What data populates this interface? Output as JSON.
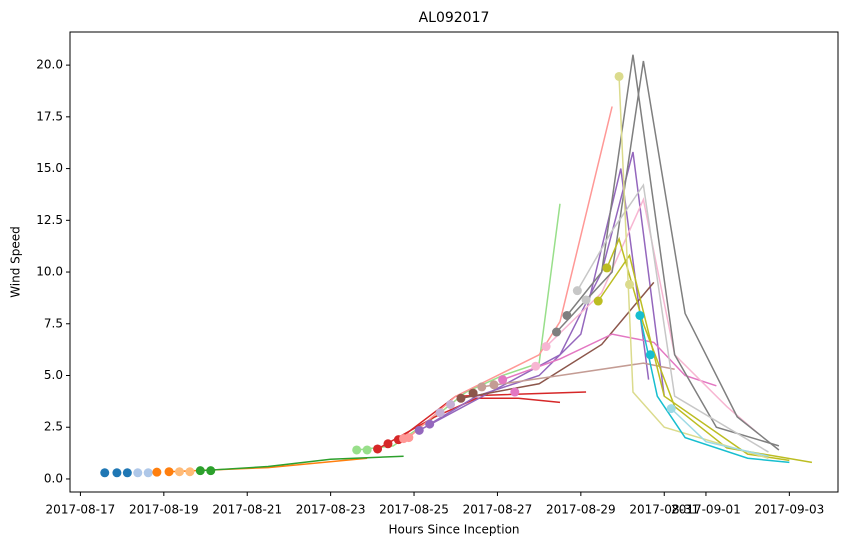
{
  "chart_data": {
    "type": "line",
    "title": "AL092017",
    "x_label": "Hours Since Inception",
    "y_label": "Wind Speed",
    "xlim": [
      "2017-08-16 18:00",
      "2017-09-04 04:00"
    ],
    "ylim": [
      -0.63,
      21.6
    ],
    "xticks": [
      "2017-08-17",
      "2017-08-19",
      "2017-08-21",
      "2017-08-23",
      "2017-08-25",
      "2017-08-27",
      "2017-08-29",
      "2017-08-31",
      "2017-09-01",
      "2017-09-03"
    ],
    "yticks": [
      {
        "value": 0,
        "label": "0.0"
      },
      2.5,
      {
        "value": 5,
        "label": "5.0"
      },
      7.5,
      {
        "value": 10,
        "label": "10.0"
      },
      12.5,
      {
        "value": 15,
        "label": "15.0"
      },
      17.5,
      {
        "value": 20,
        "label": "20.0"
      }
    ],
    "series": [
      {
        "kind": "line",
        "color": "#ff7f0e",
        "x": [
          "2017-08-19 03:00",
          "2017-08-21 12:00",
          "2017-08-23 21:00"
        ],
        "values": [
          0.35,
          0.55,
          1.0
        ]
      },
      {
        "kind": "line",
        "color": "#2ca02c",
        "x": [
          "2017-08-19 21:00",
          "2017-08-21 12:00",
          "2017-08-23 00:00",
          "2017-08-24 18:00"
        ],
        "values": [
          0.4,
          0.6,
          0.95,
          1.1
        ]
      },
      {
        "kind": "line",
        "color": "#98df8a",
        "x": [
          "2017-08-23 15:00",
          "2017-08-24 12:00",
          "2017-08-25 12:00",
          "2017-08-26 06:00",
          "2017-08-27 03:00",
          "2017-08-28 00:00",
          "2017-08-28 12:00"
        ],
        "values": [
          1.4,
          1.6,
          3.0,
          4.2,
          5.0,
          5.6,
          13.3
        ]
      },
      {
        "kind": "line",
        "color": "#d62728",
        "x": [
          "2017-08-24 03:00",
          "2017-08-25 12:00",
          "2017-08-26 12:00",
          "2017-08-27 12:00",
          "2017-08-28 12:00"
        ],
        "values": [
          1.45,
          3.0,
          3.9,
          3.9,
          3.7
        ]
      },
      {
        "kind": "line",
        "color": "#d62728",
        "x": [
          "2017-08-24 15:00",
          "2017-08-26 00:00",
          "2017-08-29 03:00"
        ],
        "values": [
          1.9,
          4.0,
          4.2
        ]
      },
      {
        "kind": "line",
        "color": "#ff9896",
        "x": [
          "2017-08-24 21:00",
          "2017-08-26 00:00",
          "2017-08-28 00:00",
          "2017-08-28 12:00",
          "2017-08-29 18:00"
        ],
        "values": [
          2.0,
          4.0,
          6.0,
          7.6,
          18.0
        ]
      },
      {
        "kind": "line",
        "color": "#9467bd",
        "x": [
          "2017-08-25 09:00",
          "2017-08-26 12:00",
          "2017-08-28 00:00",
          "2017-08-29 00:00",
          "2017-08-29 23:00",
          "2017-08-30 15:00"
        ],
        "values": [
          2.65,
          4.0,
          5.0,
          7.0,
          15.0,
          4.8
        ]
      },
      {
        "kind": "line",
        "color": "#9467bd",
        "x": [
          "2017-08-25 03:00",
          "2017-08-28 12:00",
          "2017-08-29 12:00",
          "2017-08-30 06:00",
          "2017-08-31 00:00"
        ],
        "values": [
          2.35,
          6.0,
          10.0,
          15.8,
          4.0
        ]
      },
      {
        "kind": "line",
        "color": "#8c564b",
        "x": [
          "2017-08-26 03:00",
          "2017-08-28 00:00",
          "2017-08-29 12:00",
          "2017-08-30 18:00"
        ],
        "values": [
          3.9,
          4.6,
          6.5,
          9.5
        ]
      },
      {
        "kind": "line",
        "color": "#c49c94",
        "x": [
          "2017-08-26 15:00",
          "2017-08-28 12:00",
          "2017-08-30 12:00",
          "2017-08-31 06:00"
        ],
        "values": [
          4.45,
          5.0,
          5.6,
          5.3
        ]
      },
      {
        "kind": "line",
        "color": "#e377c2",
        "x": [
          "2017-08-27 03:00",
          "2017-08-28 12:00",
          "2017-08-29 18:00",
          "2017-08-30 18:00",
          "2017-08-31 12:00",
          "2017-09-01 06:00"
        ],
        "values": [
          4.8,
          5.8,
          7.0,
          6.6,
          5.0,
          4.5
        ]
      },
      {
        "kind": "line",
        "color": "#f7b6d2",
        "x": [
          "2017-08-28 04:00",
          "2017-08-29 12:00",
          "2017-08-30 12:00",
          "2017-08-31 06:00",
          "2017-09-01 12:00",
          "2017-09-02 06:00"
        ],
        "values": [
          6.4,
          9.0,
          13.5,
          6.0,
          3.5,
          2.2
        ]
      },
      {
        "kind": "line",
        "color": "#7f7f7f",
        "x": [
          "2017-08-28 16:00",
          "2017-08-29 12:00",
          "2017-08-30 06:00",
          "2017-08-31 06:00",
          "2017-09-01 06:00",
          "2017-09-02 18:00"
        ],
        "values": [
          7.9,
          10.0,
          20.5,
          6.0,
          2.5,
          1.6
        ]
      },
      {
        "kind": "line",
        "color": "#7f7f7f",
        "x": [
          "2017-08-28 10:00",
          "2017-08-29 18:00",
          "2017-08-30 12:00",
          "2017-08-31 12:00",
          "2017-09-01 18:00",
          "2017-09-02 18:00"
        ],
        "values": [
          7.1,
          10.0,
          20.2,
          8.0,
          3.0,
          1.4
        ]
      },
      {
        "kind": "line",
        "color": "#c7c7c7",
        "x": [
          "2017-08-28 22:00",
          "2017-08-29 18:00",
          "2017-08-30 12:00",
          "2017-08-31 06:00",
          "2017-09-02 12:00"
        ],
        "values": [
          9.1,
          12.0,
          14.2,
          4.0,
          1.3
        ]
      },
      {
        "kind": "line",
        "color": "#bcbd22",
        "x": [
          "2017-08-29 15:00",
          "2017-08-29 22:00",
          "2017-08-30 12:00",
          "2017-08-31 06:00",
          "2017-09-01 12:00",
          "2017-09-03 13:00"
        ],
        "values": [
          10.2,
          11.6,
          7.5,
          3.5,
          1.5,
          0.8
        ]
      },
      {
        "kind": "line",
        "color": "#bcbd22",
        "x": [
          "2017-08-29 10:00",
          "2017-08-30 04:00",
          "2017-08-31 00:00",
          "2017-09-02 00:00",
          "2017-09-03 00:00"
        ],
        "values": [
          8.6,
          10.8,
          4.0,
          1.2,
          0.9
        ]
      },
      {
        "kind": "line",
        "color": "#dbdb8d",
        "x": [
          "2017-08-29 22:00",
          "2017-08-30 06:00",
          "2017-08-31 00:00",
          "2017-09-02 12:00"
        ],
        "values": [
          19.45,
          4.2,
          2.5,
          1.0
        ]
      },
      {
        "kind": "line",
        "color": "#17becf",
        "x": [
          "2017-08-30 10:00",
          "2017-08-30 20:00",
          "2017-08-31 12:00",
          "2017-09-02 00:00",
          "2017-09-03 00:00"
        ],
        "values": [
          7.9,
          4.0,
          2.0,
          1.0,
          0.8
        ]
      },
      {
        "kind": "line",
        "color": "#9edae5",
        "x": [
          "2017-08-31 04:00",
          "2017-09-01 00:00",
          "2017-09-02 12:00"
        ],
        "values": [
          3.4,
          1.8,
          1.1
        ]
      },
      {
        "kind": "points",
        "colors": [
          "#1f77b4",
          "#1f77b4",
          "#1f77b4",
          "#aec7e8",
          "#aec7e8",
          "#ff7f0e",
          "#ff7f0e",
          "#ffbb78",
          "#ffbb78",
          "#2ca02c",
          "#2ca02c",
          "#98df8a",
          "#98df8a",
          "#d62728",
          "#d62728",
          "#d62728",
          "#ff9896",
          "#ff9896",
          "#9467bd",
          "#9467bd",
          "#c5b0d5",
          "#c5b0d5",
          "#8c564b",
          "#8c564b",
          "#c49c94",
          "#c49c94",
          "#e377c2",
          "#e377c2",
          "#f7b6d2",
          "#f7b6d2",
          "#7f7f7f",
          "#7f7f7f",
          "#c7c7c7",
          "#c7c7c7",
          "#bcbd22",
          "#bcbd22",
          "#dbdb8d",
          "#dbdb8d",
          "#17becf",
          "#17becf",
          "#9edae5"
        ],
        "x": [
          "2017-08-17 14:00",
          "2017-08-17 21:00",
          "2017-08-18 03:00",
          "2017-08-18 09:00",
          "2017-08-18 15:00",
          "2017-08-18 20:00",
          "2017-08-19 03:00",
          "2017-08-19 09:00",
          "2017-08-19 15:00",
          "2017-08-19 21:00",
          "2017-08-20 03:00",
          "2017-08-23 15:00",
          "2017-08-23 21:00",
          "2017-08-24 03:00",
          "2017-08-24 09:00",
          "2017-08-24 15:00",
          "2017-08-24 18:00",
          "2017-08-24 21:00",
          "2017-08-25 03:00",
          "2017-08-25 09:00",
          "2017-08-25 15:00",
          "2017-08-25 21:00",
          "2017-08-26 03:00",
          "2017-08-26 10:00",
          "2017-08-26 15:00",
          "2017-08-26 22:00",
          "2017-08-27 03:00",
          "2017-08-27 10:00",
          "2017-08-27 22:00",
          "2017-08-28 04:00",
          "2017-08-28 10:00",
          "2017-08-28 16:00",
          "2017-08-28 22:00",
          "2017-08-29 03:00",
          "2017-08-29 10:00",
          "2017-08-29 15:00",
          "2017-08-29 22:00",
          "2017-08-30 04:00",
          "2017-08-30 10:00",
          "2017-08-30 16:00",
          "2017-08-31 04:00"
        ],
        "values": [
          0.3,
          0.3,
          0.3,
          0.3,
          0.3,
          0.33,
          0.35,
          0.35,
          0.35,
          0.4,
          0.4,
          1.4,
          1.4,
          1.45,
          1.7,
          1.9,
          1.95,
          2.0,
          2.35,
          2.65,
          3.2,
          3.6,
          3.9,
          4.15,
          4.45,
          4.55,
          4.8,
          4.2,
          5.45,
          6.4,
          7.1,
          7.9,
          9.1,
          8.65,
          8.6,
          10.2,
          19.45,
          9.4,
          7.9,
          6.0,
          3.4
        ]
      }
    ]
  }
}
